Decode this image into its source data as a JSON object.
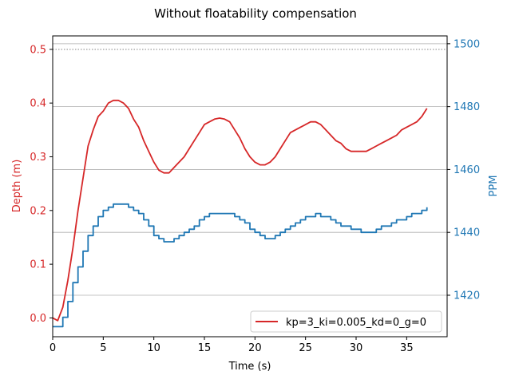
{
  "chart_data": {
    "type": "line",
    "title": "Without floatability compensation",
    "xlabel": "Time (s)",
    "ylabel_left": "Depth (m)",
    "ylabel_right": "PPM",
    "xlim": [
      0,
      39
    ],
    "ylim_left": [
      -0.035,
      0.525
    ],
    "ylim_right": [
      1406.8,
      1502.5
    ],
    "x_ticks": [
      "0",
      "5",
      "10",
      "15",
      "20",
      "25",
      "30",
      "35"
    ],
    "x_tick_values": [
      0,
      5,
      10,
      15,
      20,
      25,
      30,
      35
    ],
    "y_left_ticks": [
      "0.0",
      "0.1",
      "0.2",
      "0.3",
      "0.4",
      "0.5"
    ],
    "y_left_tick_values": [
      0,
      0.1,
      0.2,
      0.3,
      0.4,
      0.5
    ],
    "y_right_ticks": [
      "1420",
      "1440",
      "1460",
      "1480",
      "1500"
    ],
    "y_right_tick_values": [
      1420,
      1440,
      1460,
      1480,
      1500
    ],
    "grid": "horizontal (right axis)",
    "reference_line": {
      "axis": "left",
      "value": 0.5,
      "style": "dotted"
    },
    "colors": {
      "depth": "#d62728",
      "ppm": "#1f77b4",
      "grid": "#b0b0b0"
    },
    "legend": {
      "placement": "lower-right",
      "entries": [
        "kp=3_ki=0.005_kd=0_g=0"
      ]
    },
    "series": [
      {
        "name": "kp=3_ki=0.005_kd=0_g=0",
        "axis": "left",
        "x": [
          0,
          0.5,
          1,
          1.5,
          2,
          2.5,
          3,
          3.5,
          4,
          4.5,
          5,
          5.5,
          6,
          6.5,
          7,
          7.5,
          8,
          8.5,
          9,
          9.5,
          10,
          10.5,
          11,
          11.5,
          12,
          12.5,
          13,
          13.5,
          14,
          14.5,
          15,
          15.5,
          16,
          16.5,
          17,
          17.5,
          18,
          18.5,
          19,
          19.5,
          20,
          20.5,
          21,
          21.5,
          22,
          22.5,
          23,
          23.5,
          24,
          24.5,
          25,
          25.5,
          26,
          26.5,
          27,
          27.5,
          28,
          28.5,
          29,
          29.5,
          30,
          30.5,
          31,
          31.5,
          32,
          32.5,
          33,
          33.5,
          34,
          34.5,
          35,
          35.5,
          36,
          36.5,
          37
        ],
        "values": [
          0.0,
          -0.005,
          0.02,
          0.07,
          0.13,
          0.2,
          0.26,
          0.32,
          0.35,
          0.375,
          0.385,
          0.4,
          0.405,
          0.405,
          0.4,
          0.39,
          0.37,
          0.355,
          0.33,
          0.31,
          0.29,
          0.275,
          0.27,
          0.27,
          0.28,
          0.29,
          0.3,
          0.315,
          0.33,
          0.345,
          0.36,
          0.365,
          0.37,
          0.372,
          0.37,
          0.365,
          0.35,
          0.335,
          0.315,
          0.3,
          0.29,
          0.285,
          0.285,
          0.29,
          0.3,
          0.315,
          0.33,
          0.345,
          0.35,
          0.355,
          0.36,
          0.365,
          0.365,
          0.36,
          0.35,
          0.34,
          0.33,
          0.325,
          0.315,
          0.31,
          0.31,
          0.31,
          0.31,
          0.315,
          0.32,
          0.325,
          0.33,
          0.335,
          0.34,
          0.35,
          0.355,
          0.36,
          0.365,
          0.375,
          0.39
        ]
      },
      {
        "name": "PPM",
        "axis": "right",
        "x": [
          0,
          0.5,
          1,
          1.5,
          2,
          2.5,
          3,
          3.5,
          4,
          4.5,
          5,
          5.5,
          6,
          6.5,
          7,
          7.5,
          8,
          8.5,
          9,
          9.5,
          10,
          10.5,
          11,
          11.5,
          12,
          12.5,
          13,
          13.5,
          14,
          14.5,
          15,
          15.5,
          16,
          16.5,
          17,
          17.5,
          18,
          18.5,
          19,
          19.5,
          20,
          20.5,
          21,
          21.5,
          22,
          22.5,
          23,
          23.5,
          24,
          24.5,
          25,
          25.5,
          26,
          26.5,
          27,
          27.5,
          28,
          28.5,
          29,
          29.5,
          30,
          30.5,
          31,
          31.5,
          32,
          32.5,
          33,
          33.5,
          34,
          34.5,
          35,
          35.5,
          36,
          36.5,
          37
        ],
        "values": [
          1410,
          1410,
          1413,
          1418,
          1424,
          1429,
          1434,
          1439,
          1442,
          1445,
          1447,
          1448,
          1449,
          1449,
          1449,
          1448,
          1447,
          1446,
          1444,
          1442,
          1439,
          1438,
          1437,
          1437,
          1438,
          1439,
          1440,
          1441,
          1442,
          1444,
          1445,
          1446,
          1446,
          1446,
          1446,
          1446,
          1445,
          1444,
          1443,
          1441,
          1440,
          1439,
          1438,
          1438,
          1439,
          1440,
          1441,
          1442,
          1443,
          1444,
          1445,
          1445,
          1446,
          1445,
          1445,
          1444,
          1443,
          1442,
          1442,
          1441,
          1441,
          1440,
          1440,
          1440,
          1441,
          1442,
          1442,
          1443,
          1444,
          1444,
          1445,
          1446,
          1446,
          1447,
          1448
        ]
      }
    ]
  }
}
